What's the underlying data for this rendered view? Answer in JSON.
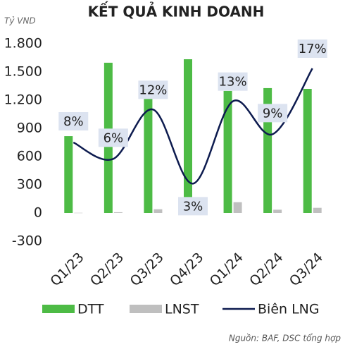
{
  "chart_data": {
    "type": "bar-line",
    "title": "KẾT QUẢ KINH DOANH",
    "y_label": "Tỷ VND",
    "source": "Nguồn: BAF, DSC tổng hợp",
    "categories": [
      "Q1/23",
      "Q2/23",
      "Q3/23",
      "Q4/23",
      "Q1/24",
      "Q2/24",
      "Q3/24"
    ],
    "series": [
      {
        "name": "DTT",
        "color": "#4dbb45",
        "type": "bar",
        "values": [
          817,
          1598,
          1215,
          1635,
          1298,
          1328,
          1320
        ]
      },
      {
        "name": "LNST",
        "color": "#bfbfbf",
        "type": "bar",
        "values": [
          2,
          8,
          40,
          -20,
          115,
          35,
          55
        ]
      },
      {
        "name": "Biên LNG",
        "color": "#0d1b4f",
        "type": "line",
        "axis": "y2",
        "values": [
          8,
          6,
          12,
          3,
          13,
          9,
          17
        ],
        "value_labels": [
          "8%",
          "6%",
          "12%",
          "3%",
          "13%",
          "9%",
          "17%"
        ]
      }
    ],
    "ylim": [
      -300,
      1800
    ],
    "yticks": [
      -300,
      0,
      300,
      600,
      900,
      {
        "value": 1200,
        "label": "1.200"
      },
      {
        "value": 1500,
        "label": "1.500"
      },
      {
        "value": 1800,
        "label": "1.800"
      }
    ],
    "y2lim": [
      -4,
      20
    ],
    "grid": false,
    "legend": "bottom"
  }
}
